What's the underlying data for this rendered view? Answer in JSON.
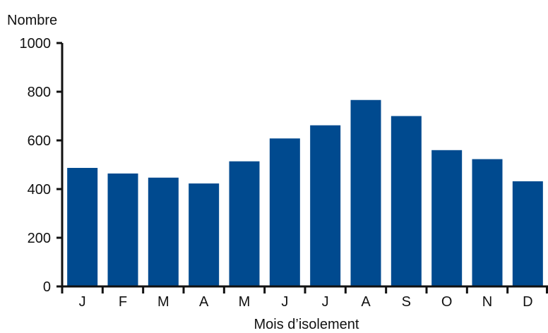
{
  "chart_data": {
    "type": "bar",
    "ylabel": "Nombre",
    "xlabel": "Mois d’isolement",
    "categories": [
      "J",
      "F",
      "M",
      "A",
      "M",
      "J",
      "J",
      "A",
      "S",
      "O",
      "N",
      "D"
    ],
    "values": [
      487,
      464,
      447,
      423,
      514,
      608,
      662,
      766,
      700,
      560,
      523,
      432
    ],
    "ylim": [
      0,
      1000
    ],
    "yticks": [
      0,
      200,
      400,
      600,
      800,
      1000
    ],
    "grid": false,
    "bar_color": "#004a8f"
  }
}
